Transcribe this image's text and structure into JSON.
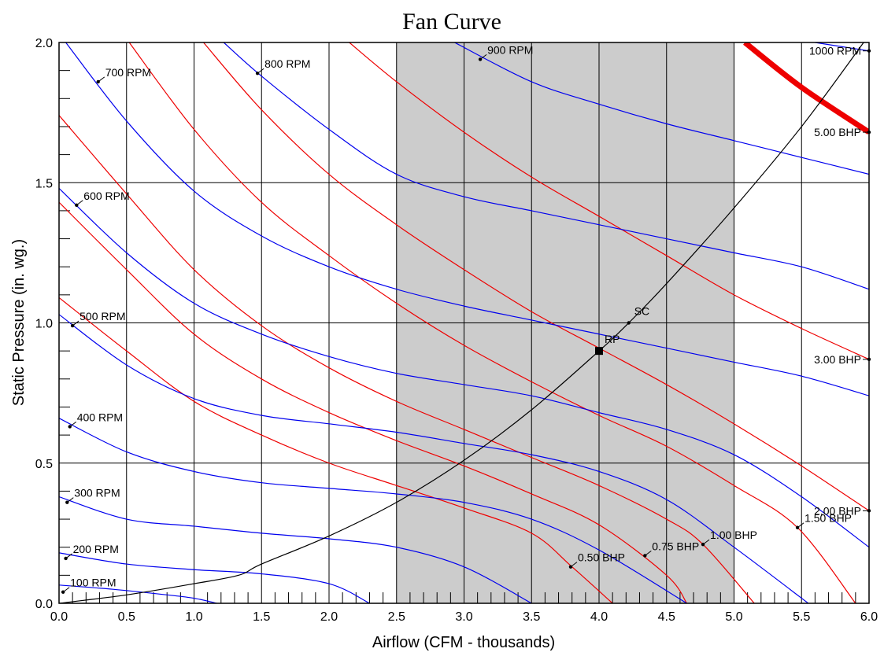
{
  "chart_data": {
    "type": "line",
    "title": "Fan Curve",
    "xlabel": "Airflow (CFM - thousands)",
    "ylabel": "Static Pressure (in. wg.)",
    "xlim": [
      0,
      6
    ],
    "ylim": [
      0,
      2
    ],
    "x_ticks": [
      "0.0",
      "0.5",
      "1.0",
      "1.5",
      "2.0",
      "2.5",
      "3.0",
      "3.5",
      "4.0",
      "4.5",
      "5.0",
      "5.5",
      "6.0"
    ],
    "y_ticks": [
      "0.0",
      "0.5",
      "1.0",
      "1.5",
      "2.0"
    ],
    "grid": true,
    "colors": {
      "rpm": "#0000ee",
      "bhp": "#ee0000",
      "system": "#000000",
      "shade": "#cccccc",
      "grid": "#000000"
    },
    "shaded_region": {
      "x": [
        2.5,
        5.0
      ]
    },
    "rpm_curves": [
      {
        "name": "100 RPM",
        "label_at": [
          0.03,
          0.04
        ],
        "points": [
          [
            0,
            0.065
          ],
          [
            0.4,
            0.05
          ],
          [
            0.8,
            0.03
          ],
          [
            1.0,
            0.018
          ],
          [
            1.17,
            0.0
          ]
        ]
      },
      {
        "name": "200 RPM",
        "label_at": [
          0.05,
          0.16
        ],
        "points": [
          [
            0,
            0.18
          ],
          [
            0.5,
            0.14
          ],
          [
            1.0,
            0.12
          ],
          [
            1.5,
            0.105
          ],
          [
            2.0,
            0.07
          ],
          [
            2.3,
            0.0
          ]
        ]
      },
      {
        "name": "300 RPM",
        "label_at": [
          0.06,
          0.36
        ],
        "points": [
          [
            0,
            0.38
          ],
          [
            0.5,
            0.3
          ],
          [
            1.0,
            0.275
          ],
          [
            1.5,
            0.25
          ],
          [
            2.0,
            0.23
          ],
          [
            2.5,
            0.2
          ],
          [
            3.0,
            0.13
          ],
          [
            3.5,
            0.0
          ]
        ]
      },
      {
        "name": "400 RPM",
        "label_at": [
          0.08,
          0.63
        ],
        "points": [
          [
            0,
            0.66
          ],
          [
            0.5,
            0.54
          ],
          [
            1.0,
            0.47
          ],
          [
            1.5,
            0.43
          ],
          [
            2.0,
            0.41
          ],
          [
            2.5,
            0.39
          ],
          [
            3.0,
            0.36
          ],
          [
            3.5,
            0.3
          ],
          [
            4.0,
            0.19
          ],
          [
            4.65,
            0.0
          ]
        ]
      },
      {
        "name": "500 RPM",
        "label_at": [
          0.1,
          0.99
        ],
        "points": [
          [
            0,
            1.03
          ],
          [
            0.5,
            0.85
          ],
          [
            1.0,
            0.73
          ],
          [
            1.5,
            0.67
          ],
          [
            2.0,
            0.64
          ],
          [
            2.5,
            0.61
          ],
          [
            3.0,
            0.57
          ],
          [
            3.5,
            0.53
          ],
          [
            4.0,
            0.47
          ],
          [
            4.5,
            0.37
          ],
          [
            5.0,
            0.2
          ],
          [
            5.55,
            0.0
          ]
        ]
      },
      {
        "name": "600 RPM",
        "label_at": [
          0.13,
          1.42
        ],
        "points": [
          [
            0,
            1.48
          ],
          [
            0.5,
            1.25
          ],
          [
            1.0,
            1.07
          ],
          [
            1.5,
            0.96
          ],
          [
            2.0,
            0.88
          ],
          [
            2.5,
            0.82
          ],
          [
            3.0,
            0.78
          ],
          [
            3.5,
            0.74
          ],
          [
            4.0,
            0.68
          ],
          [
            4.5,
            0.62
          ],
          [
            5.0,
            0.53
          ],
          [
            5.5,
            0.38
          ],
          [
            6.0,
            0.2
          ]
        ]
      },
      {
        "name": "700 RPM",
        "label_at": [
          0.29,
          1.86
        ],
        "points": [
          [
            0.05,
            2.0
          ],
          [
            0.5,
            1.72
          ],
          [
            1.0,
            1.47
          ],
          [
            1.5,
            1.31
          ],
          [
            2.0,
            1.2
          ],
          [
            2.5,
            1.12
          ],
          [
            3.0,
            1.06
          ],
          [
            3.5,
            1.01
          ],
          [
            4.0,
            0.96
          ],
          [
            4.5,
            0.91
          ],
          [
            5.0,
            0.86
          ],
          [
            5.5,
            0.81
          ],
          [
            6.0,
            0.74
          ]
        ]
      },
      {
        "name": "800 RPM",
        "label_at": [
          1.47,
          1.89
        ],
        "points": [
          [
            1.22,
            2.0
          ],
          [
            1.5,
            1.88
          ],
          [
            2.0,
            1.69
          ],
          [
            2.5,
            1.53
          ],
          [
            3.0,
            1.45
          ],
          [
            3.5,
            1.4
          ],
          [
            4.0,
            1.35
          ],
          [
            4.5,
            1.3
          ],
          [
            5.0,
            1.25
          ],
          [
            5.5,
            1.2
          ],
          [
            6.0,
            1.12
          ]
        ]
      },
      {
        "name": "900 RPM",
        "label_at": [
          3.12,
          1.94
        ],
        "points": [
          [
            2.93,
            2.0
          ],
          [
            3.5,
            1.86
          ],
          [
            4.0,
            1.78
          ],
          [
            4.5,
            1.71
          ],
          [
            5.0,
            1.65
          ],
          [
            5.5,
            1.59
          ],
          [
            6.0,
            1.53
          ]
        ]
      },
      {
        "name": "1000 RPM",
        "label_at": [
          6.0,
          1.97
        ],
        "label_anchor": "end",
        "points": [
          [
            5.6,
            2.0
          ],
          [
            6.0,
            1.97
          ]
        ]
      }
    ],
    "bhp_curves": [
      {
        "name": "0.50 BHP",
        "label_at": [
          3.79,
          0.13
        ],
        "points": [
          [
            0,
            1.09
          ],
          [
            0.5,
            0.9
          ],
          [
            1.0,
            0.72
          ],
          [
            1.5,
            0.6
          ],
          [
            2.0,
            0.5
          ],
          [
            2.5,
            0.42
          ],
          [
            3.0,
            0.34
          ],
          [
            3.5,
            0.25
          ],
          [
            3.8,
            0.13
          ],
          [
            4.1,
            0.0
          ]
        ]
      },
      {
        "name": "0.75 BHP",
        "label_at": [
          4.34,
          0.17
        ],
        "points": [
          [
            0,
            1.43
          ],
          [
            0.5,
            1.19
          ],
          [
            1.0,
            0.96
          ],
          [
            1.5,
            0.8
          ],
          [
            2.0,
            0.68
          ],
          [
            2.5,
            0.58
          ],
          [
            3.0,
            0.49
          ],
          [
            3.5,
            0.39
          ],
          [
            4.0,
            0.28
          ],
          [
            4.5,
            0.1
          ],
          [
            4.65,
            0.0
          ]
        ]
      },
      {
        "name": "1.00 BHP",
        "label_at": [
          4.77,
          0.21
        ],
        "points": [
          [
            0,
            1.74
          ],
          [
            0.5,
            1.46
          ],
          [
            1.0,
            1.19
          ],
          [
            1.5,
            0.99
          ],
          [
            2.0,
            0.84
          ],
          [
            2.5,
            0.72
          ],
          [
            3.0,
            0.62
          ],
          [
            3.5,
            0.52
          ],
          [
            4.0,
            0.42
          ],
          [
            4.5,
            0.3
          ],
          [
            4.77,
            0.21
          ],
          [
            5.15,
            0.0
          ]
        ]
      },
      {
        "name": "1.50 BHP",
        "label_at": [
          5.47,
          0.27
        ],
        "points": [
          [
            0.52,
            2.0
          ],
          [
            1.0,
            1.69
          ],
          [
            1.5,
            1.43
          ],
          [
            2.0,
            1.24
          ],
          [
            2.5,
            1.07
          ],
          [
            3.0,
            0.92
          ],
          [
            3.5,
            0.79
          ],
          [
            4.0,
            0.67
          ],
          [
            4.5,
            0.56
          ],
          [
            5.0,
            0.42
          ],
          [
            5.47,
            0.27
          ],
          [
            5.9,
            0.0
          ]
        ]
      },
      {
        "name": "2.00 BHP",
        "label_at": [
          6.0,
          0.33
        ],
        "label_anchor": "end",
        "points": [
          [
            1.07,
            2.0
          ],
          [
            1.5,
            1.76
          ],
          [
            2.0,
            1.53
          ],
          [
            2.5,
            1.35
          ],
          [
            3.0,
            1.19
          ],
          [
            3.5,
            1.04
          ],
          [
            4.0,
            0.91
          ],
          [
            4.5,
            0.78
          ],
          [
            5.0,
            0.64
          ],
          [
            5.5,
            0.49
          ],
          [
            6.0,
            0.33
          ]
        ]
      },
      {
        "name": "3.00 BHP",
        "label_at": [
          6.0,
          0.87
        ],
        "label_anchor": "end",
        "points": [
          [
            2.15,
            2.0
          ],
          [
            2.5,
            1.86
          ],
          [
            3.0,
            1.68
          ],
          [
            3.5,
            1.52
          ],
          [
            4.0,
            1.38
          ],
          [
            4.5,
            1.24
          ],
          [
            5.0,
            1.1
          ],
          [
            5.5,
            0.98
          ],
          [
            6.0,
            0.87
          ]
        ]
      },
      {
        "name": "5.00 BHP",
        "label_at": [
          6.0,
          1.68
        ],
        "label_anchor": "end",
        "bold": true,
        "points": [
          [
            5.08,
            2.0
          ],
          [
            5.5,
            1.84
          ],
          [
            6.0,
            1.68
          ]
        ]
      }
    ],
    "system_curve": {
      "points": [
        [
          0,
          0.0
        ],
        [
          0.5,
          0.03
        ],
        [
          1.0,
          0.07
        ],
        [
          1.33,
          0.1
        ],
        [
          1.5,
          0.14
        ],
        [
          2.0,
          0.24
        ],
        [
          2.5,
          0.36
        ],
        [
          3.0,
          0.51
        ],
        [
          3.5,
          0.69
        ],
        [
          4.0,
          0.9
        ],
        [
          4.22,
          1.0
        ],
        [
          4.5,
          1.14
        ],
        [
          5.0,
          1.41
        ],
        [
          5.5,
          1.7
        ],
        [
          5.96,
          2.0
        ]
      ]
    },
    "annotations": [
      {
        "label": "SC",
        "x": 4.22,
        "y": 1.0,
        "marker": "dot"
      },
      {
        "label": "RP",
        "x": 4.0,
        "y": 0.9,
        "marker": "square"
      }
    ]
  }
}
